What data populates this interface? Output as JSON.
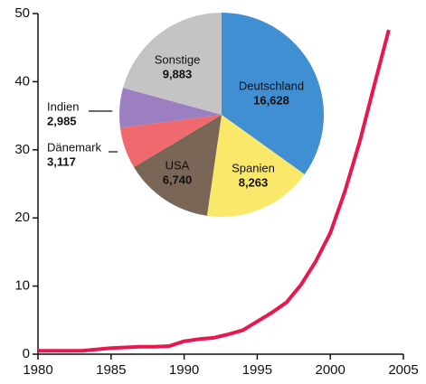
{
  "chart_data": [
    {
      "type": "line",
      "x": [
        1980,
        1981,
        1982,
        1983,
        1984,
        1985,
        1986,
        1987,
        1988,
        1989,
        1990,
        1991,
        1992,
        1993,
        1994,
        1995,
        1996,
        1997,
        1998,
        1999,
        2000,
        2001,
        2002,
        2003,
        2004
      ],
      "values": [
        0.5,
        0.5,
        0.5,
        0.5,
        0.7,
        0.9,
        1.0,
        1.1,
        1.1,
        1.2,
        1.9,
        2.2,
        2.4,
        2.9,
        3.5,
        4.8,
        6.1,
        7.6,
        10.2,
        13.6,
        17.8,
        23.9,
        31.1,
        39.4,
        47.6
      ],
      "color": "#e8184f",
      "xlim": [
        1980,
        2005
      ],
      "xticks": [
        1980,
        1985,
        1990,
        1995,
        2000,
        2005
      ],
      "ylim": [
        0,
        50
      ],
      "yticks": [
        0,
        10,
        20,
        30,
        40,
        50
      ]
    },
    {
      "type": "pie",
      "categories": [
        "Deutschland",
        "Spanien",
        "USA",
        "Dänemark",
        "Indien",
        "Sonstige"
      ],
      "values": [
        16628,
        8263,
        6740,
        3117,
        2985,
        9883
      ],
      "value_labels": [
        "16,628",
        "8,263",
        "6,740",
        "3,117",
        "2,985",
        "9,883"
      ],
      "colors": [
        "#3f8fd2",
        "#f9e86a",
        "#7a6656",
        "#ef6a6e",
        "#9b7fc0",
        "#c4c4c4"
      ]
    }
  ]
}
